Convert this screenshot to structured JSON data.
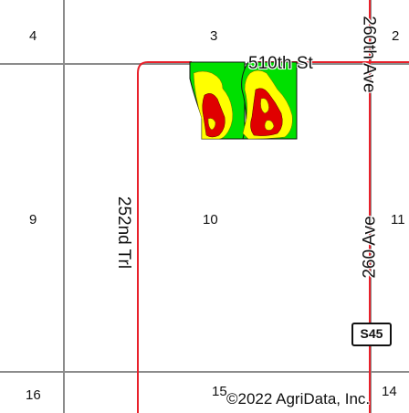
{
  "map": {
    "sections": [
      "4",
      "3",
      "2",
      "9",
      "10",
      "11",
      "16",
      "15",
      "14"
    ],
    "roads": {
      "h_510th": "510th St",
      "v_260th_top": "260th Ave",
      "v_252nd": "252nd Trl",
      "v_260_mid": "260 Ave"
    },
    "shield": "S45",
    "copyright": "©2022 AgriData, Inc."
  },
  "colors": {
    "section_line": "#8c8c8c",
    "road": "#e8202a",
    "yield_high": "#00e000",
    "yield_mid": "#ffff00",
    "yield_low": "#e00000",
    "field_outline": "#111111"
  }
}
